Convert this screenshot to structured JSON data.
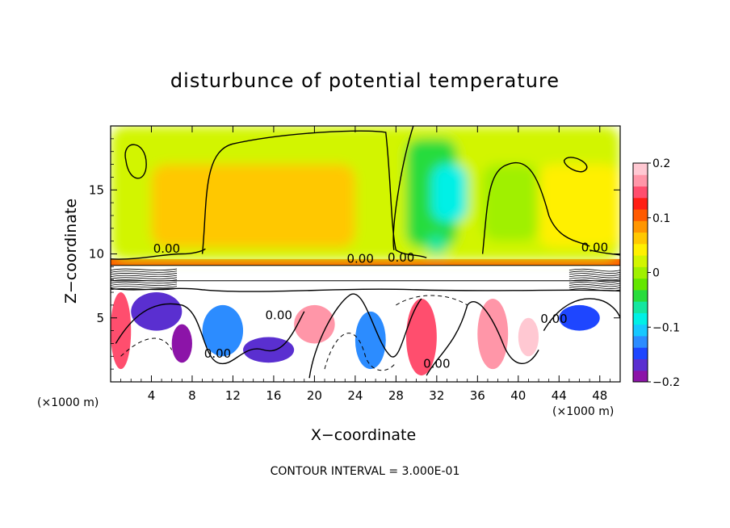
{
  "chart_data": {
    "type": "heatmap",
    "title": "disturbunce of potential temperature",
    "xlabel": "X−coordinate",
    "ylabel": "Z−coordinate",
    "x_unit_label": "(×1000 m)",
    "x_ticks": [
      "4",
      "8",
      "12",
      "16",
      "20",
      "24",
      "28",
      "32",
      "36",
      "40",
      "44",
      "48"
    ],
    "x_tick_values": [
      4,
      8,
      12,
      16,
      20,
      24,
      28,
      32,
      36,
      40,
      44,
      48
    ],
    "y_ticks": [
      "5",
      "10",
      "15"
    ],
    "y_tick_values": [
      5,
      10,
      15
    ],
    "xlim": [
      0,
      50
    ],
    "ylim": [
      0,
      20
    ],
    "colorbar": {
      "ticks": [
        "0.2",
        "0.1",
        "0",
        "−0.1",
        "−0.2"
      ],
      "tick_values": [
        0.2,
        0.1,
        0,
        -0.1,
        -0.2
      ],
      "range": [
        -0.2,
        0.2
      ],
      "colors": [
        "#8c14a8",
        "#5a2fd0",
        "#1e46ff",
        "#2c8cff",
        "#16c8ff",
        "#00f0e6",
        "#14e6a0",
        "#28dc3c",
        "#64e600",
        "#a0f000",
        "#d2f500",
        "#fff000",
        "#ffc800",
        "#ff9600",
        "#ff5a00",
        "#ff1e14",
        "#ff4e6e",
        "#ff96a8",
        "#ffc8d2"
      ]
    },
    "contour_labels": [
      "0.00",
      "0.00",
      "0.00",
      "0.00",
      "0.00",
      "0.00",
      "0.00",
      "0.00"
    ],
    "field_regions": [
      {
        "x": [
          0,
          50
        ],
        "z": [
          9.5,
          20
        ],
        "value": 0.03
      },
      {
        "x": [
          4,
          24
        ],
        "z": [
          10.5,
          17
        ],
        "value": 0.06
      },
      {
        "x": [
          29,
          34
        ],
        "z": [
          10.5,
          19
        ],
        "value": -0.05
      },
      {
        "x": [
          31.5,
          35
        ],
        "z": [
          12.5,
          17
        ],
        "value": -0.1
      },
      {
        "x": [
          31,
          33
        ],
        "z": [
          10,
          11.5
        ],
        "value": -0.06
      },
      {
        "x": [
          36.5,
          42
        ],
        "z": [
          11,
          17
        ],
        "value": -0.01
      },
      {
        "x": [
          42,
          50
        ],
        "z": [
          10.5,
          17
        ],
        "value": 0.05
      },
      {
        "x": [
          0,
          50
        ],
        "z": [
          9.1,
          9.6
        ],
        "value": 0.12
      },
      {
        "x": [
          0,
          50
        ],
        "z": [
          0,
          8
        ],
        "value": 0.0
      },
      {
        "x": [
          0,
          2
        ],
        "z": [
          1,
          7
        ],
        "value": 0.15
      },
      {
        "x": [
          2,
          7
        ],
        "z": [
          4,
          7
        ],
        "value": -0.17
      },
      {
        "x": [
          6,
          8
        ],
        "z": [
          1.5,
          4.5
        ],
        "value": -0.2
      },
      {
        "x": [
          9,
          13
        ],
        "z": [
          2,
          6
        ],
        "value": -0.14
      },
      {
        "x": [
          13,
          18
        ],
        "z": [
          1.5,
          3.5
        ],
        "value": -0.18
      },
      {
        "x": [
          18,
          22
        ],
        "z": [
          3,
          6
        ],
        "value": 0.17
      },
      {
        "x": [
          24,
          27
        ],
        "z": [
          1,
          5.5
        ],
        "value": -0.13
      },
      {
        "x": [
          29,
          32
        ],
        "z": [
          0.5,
          6.5
        ],
        "value": 0.16
      },
      {
        "x": [
          36,
          39
        ],
        "z": [
          1,
          6.5
        ],
        "value": 0.18
      },
      {
        "x": [
          40,
          42
        ],
        "z": [
          2,
          5
        ],
        "value": 0.2
      },
      {
        "x": [
          44,
          48
        ],
        "z": [
          4,
          6
        ],
        "value": -0.16
      }
    ]
  }
}
